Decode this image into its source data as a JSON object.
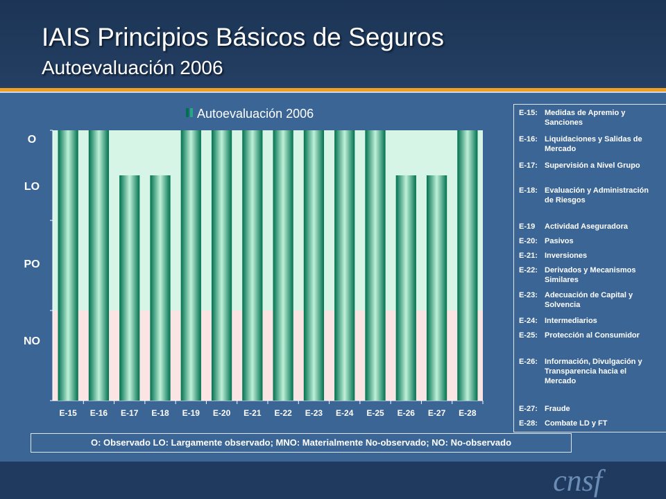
{
  "header": {
    "title": "IAIS Principios Básicos de Seguros",
    "subtitle": "Autoevaluación 2006"
  },
  "colors": {
    "accent": "#f0a020",
    "bar": "#0f9a72",
    "band_upper": "#d6f5e6",
    "band_lower": "#fbe4e4"
  },
  "y_levels": [
    "O",
    "LO",
    "PO",
    "NO"
  ],
  "chart_data": {
    "type": "bar",
    "title": "",
    "legend": [
      {
        "name": "Autoevaluación 2006"
      }
    ],
    "categories": [
      "E-15",
      "E-16",
      "E-17",
      "E-18",
      "E-19",
      "E-20",
      "E-21",
      "E-22",
      "E-23",
      "E-24",
      "E-25",
      "E-26",
      "E-27",
      "E-28"
    ],
    "series": [
      {
        "name": "Autoevaluación 2006",
        "values": [
          4,
          4,
          3.5,
          3.5,
          4,
          4,
          4,
          4,
          4,
          4,
          4,
          3.5,
          3.5,
          4
        ]
      }
    ],
    "ylim": [
      1,
      4
    ],
    "y_tick_labels": [
      "O",
      "LO",
      "PO",
      "NO"
    ],
    "grid": false,
    "legend_placement": "top"
  },
  "legend_items": [
    {
      "code": "E-15:",
      "text": "Medidas de Apremio y Sanciones"
    },
    {
      "code": "E-16:",
      "text": "Liquidaciones y Salidas de Mercado"
    },
    {
      "code": "E-17:",
      "text": "Supervisión a Nivel Grupo"
    },
    {
      "code": "E-18:",
      "text": "Evaluación y Administración de Riesgos"
    },
    {
      "code": "E-19",
      "text": "Actividad Aseguradora"
    },
    {
      "code": "E-20:",
      "text": "Pasivos"
    },
    {
      "code": "E-21:",
      "text": "Inversiones"
    },
    {
      "code": "E-22:",
      "text": "Derivados y Mecanismos Similares"
    },
    {
      "code": "E-23:",
      "text": "Adecuación de Capital y Solvencia"
    },
    {
      "code": "E-24:",
      "text": "Intermediarios"
    },
    {
      "code": "E-25:",
      "text": "Protección al Consumidor"
    },
    {
      "code": "E-26:",
      "text": "Información, Divulgación y Transparencia hacia el Mercado"
    },
    {
      "code": "E-27:",
      "text": "Fraude"
    },
    {
      "code": "E-28:",
      "text": "Combate LD y FT"
    }
  ],
  "note": "O: Observado  LO: Largamente observado;  MNO: Materialmente No-observado;  NO: No-observado",
  "logo": "cnsf"
}
